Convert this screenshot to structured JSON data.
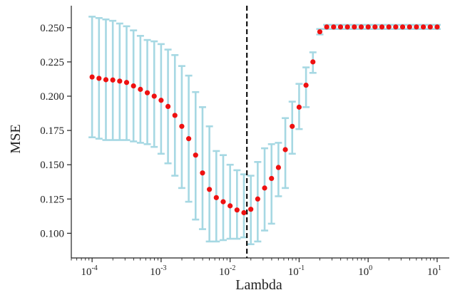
{
  "chart_data": {
    "type": "scatter",
    "xlabel": "Lambda",
    "ylabel": "MSE",
    "xscale": "log",
    "xlim": [
      5e-05,
      15
    ],
    "ylim": [
      0.082,
      0.266
    ],
    "x_ticks": [
      {
        "value": 0.0001,
        "base": "10",
        "exp": "-4"
      },
      {
        "value": 0.001,
        "base": "10",
        "exp": "-3"
      },
      {
        "value": 0.01,
        "base": "10",
        "exp": "-2"
      },
      {
        "value": 0.1,
        "base": "10",
        "exp": "-1"
      },
      {
        "value": 1,
        "base": "10",
        "exp": "0"
      },
      {
        "value": 10,
        "base": "10",
        "exp": "1"
      }
    ],
    "y_ticks": [
      {
        "value": 0.1,
        "label": "0.100"
      },
      {
        "value": 0.125,
        "label": "0.125"
      },
      {
        "value": 0.15,
        "label": "0.150"
      },
      {
        "value": 0.175,
        "label": "0.175"
      },
      {
        "value": 0.2,
        "label": "0.200"
      },
      {
        "value": 0.225,
        "label": "0.225"
      },
      {
        "value": 0.25,
        "label": "0.250"
      }
    ],
    "best_lambda": 0.0175,
    "colors": {
      "point": "#ee1111",
      "errorbar": "#a6d8e3",
      "vline": "#111111",
      "axis": "#222222"
    },
    "points": [
      {
        "x": 0.0001,
        "y": 0.214,
        "lo": 0.17,
        "hi": 0.258
      },
      {
        "x": 0.0001259,
        "y": 0.213,
        "lo": 0.169,
        "hi": 0.257
      },
      {
        "x": 0.0001585,
        "y": 0.212,
        "lo": 0.168,
        "hi": 0.256
      },
      {
        "x": 0.0001995,
        "y": 0.2118,
        "lo": 0.168,
        "hi": 0.255
      },
      {
        "x": 0.0002512,
        "y": 0.211,
        "lo": 0.168,
        "hi": 0.253
      },
      {
        "x": 0.0003162,
        "y": 0.21,
        "lo": 0.168,
        "hi": 0.251
      },
      {
        "x": 0.0003981,
        "y": 0.2075,
        "lo": 0.167,
        "hi": 0.248
      },
      {
        "x": 0.0005012,
        "y": 0.205,
        "lo": 0.166,
        "hi": 0.244
      },
      {
        "x": 0.000631,
        "y": 0.2025,
        "lo": 0.165,
        "hi": 0.241
      },
      {
        "x": 0.0007943,
        "y": 0.2,
        "lo": 0.163,
        "hi": 0.24
      },
      {
        "x": 0.001,
        "y": 0.197,
        "lo": 0.158,
        "hi": 0.238
      },
      {
        "x": 0.001259,
        "y": 0.1925,
        "lo": 0.151,
        "hi": 0.234
      },
      {
        "x": 0.001585,
        "y": 0.186,
        "lo": 0.142,
        "hi": 0.23
      },
      {
        "x": 0.001995,
        "y": 0.178,
        "lo": 0.133,
        "hi": 0.222
      },
      {
        "x": 0.002512,
        "y": 0.169,
        "lo": 0.123,
        "hi": 0.215
      },
      {
        "x": 0.003162,
        "y": 0.157,
        "lo": 0.11,
        "hi": 0.203
      },
      {
        "x": 0.003981,
        "y": 0.144,
        "lo": 0.103,
        "hi": 0.192
      },
      {
        "x": 0.005012,
        "y": 0.132,
        "lo": 0.094,
        "hi": 0.178
      },
      {
        "x": 0.00631,
        "y": 0.126,
        "lo": 0.094,
        "hi": 0.16
      },
      {
        "x": 0.007943,
        "y": 0.123,
        "lo": 0.095,
        "hi": 0.157
      },
      {
        "x": 0.01,
        "y": 0.12,
        "lo": 0.096,
        "hi": 0.15
      },
      {
        "x": 0.012589,
        "y": 0.117,
        "lo": 0.096,
        "hi": 0.146
      },
      {
        "x": 0.015849,
        "y": 0.115,
        "lo": 0.097,
        "hi": 0.143
      },
      {
        "x": 0.019953,
        "y": 0.1175,
        "lo": 0.092,
        "hi": 0.142
      },
      {
        "x": 0.025119,
        "y": 0.125,
        "lo": 0.094,
        "hi": 0.152
      },
      {
        "x": 0.031623,
        "y": 0.133,
        "lo": 0.102,
        "hi": 0.162
      },
      {
        "x": 0.039811,
        "y": 0.14,
        "lo": 0.107,
        "hi": 0.165
      },
      {
        "x": 0.050119,
        "y": 0.148,
        "lo": 0.127,
        "hi": 0.166
      },
      {
        "x": 0.063096,
        "y": 0.161,
        "lo": 0.133,
        "hi": 0.184
      },
      {
        "x": 0.079433,
        "y": 0.178,
        "lo": 0.158,
        "hi": 0.196
      },
      {
        "x": 0.1,
        "y": 0.192,
        "lo": 0.176,
        "hi": 0.209
      },
      {
        "x": 0.125893,
        "y": 0.208,
        "lo": 0.192,
        "hi": 0.221
      },
      {
        "x": 0.158489,
        "y": 0.225,
        "lo": 0.217,
        "hi": 0.232
      },
      {
        "x": 0.199526,
        "y": 0.247,
        "lo": 0.245,
        "hi": 0.249
      },
      {
        "x": 0.251189,
        "y": 0.2505,
        "lo": 0.249,
        "hi": 0.252
      },
      {
        "x": 0.316228,
        "y": 0.2505,
        "lo": 0.249,
        "hi": 0.252
      },
      {
        "x": 0.398107,
        "y": 0.2505,
        "lo": 0.249,
        "hi": 0.252
      },
      {
        "x": 0.501187,
        "y": 0.2505,
        "lo": 0.249,
        "hi": 0.252
      },
      {
        "x": 0.630957,
        "y": 0.2505,
        "lo": 0.249,
        "hi": 0.252
      },
      {
        "x": 0.794328,
        "y": 0.2505,
        "lo": 0.249,
        "hi": 0.252
      },
      {
        "x": 1.0,
        "y": 0.2505,
        "lo": 0.249,
        "hi": 0.252
      },
      {
        "x": 1.258925,
        "y": 0.2505,
        "lo": 0.249,
        "hi": 0.252
      },
      {
        "x": 1.584893,
        "y": 0.2505,
        "lo": 0.249,
        "hi": 0.252
      },
      {
        "x": 1.995262,
        "y": 0.2505,
        "lo": 0.249,
        "hi": 0.252
      },
      {
        "x": 2.511886,
        "y": 0.2505,
        "lo": 0.249,
        "hi": 0.252
      },
      {
        "x": 3.162278,
        "y": 0.2505,
        "lo": 0.249,
        "hi": 0.252
      },
      {
        "x": 3.981072,
        "y": 0.2505,
        "lo": 0.249,
        "hi": 0.252
      },
      {
        "x": 5.011872,
        "y": 0.2505,
        "lo": 0.249,
        "hi": 0.252
      },
      {
        "x": 6.309573,
        "y": 0.2505,
        "lo": 0.249,
        "hi": 0.252
      },
      {
        "x": 7.943282,
        "y": 0.2505,
        "lo": 0.249,
        "hi": 0.252
      },
      {
        "x": 10.0,
        "y": 0.2505,
        "lo": 0.249,
        "hi": 0.252
      }
    ]
  }
}
